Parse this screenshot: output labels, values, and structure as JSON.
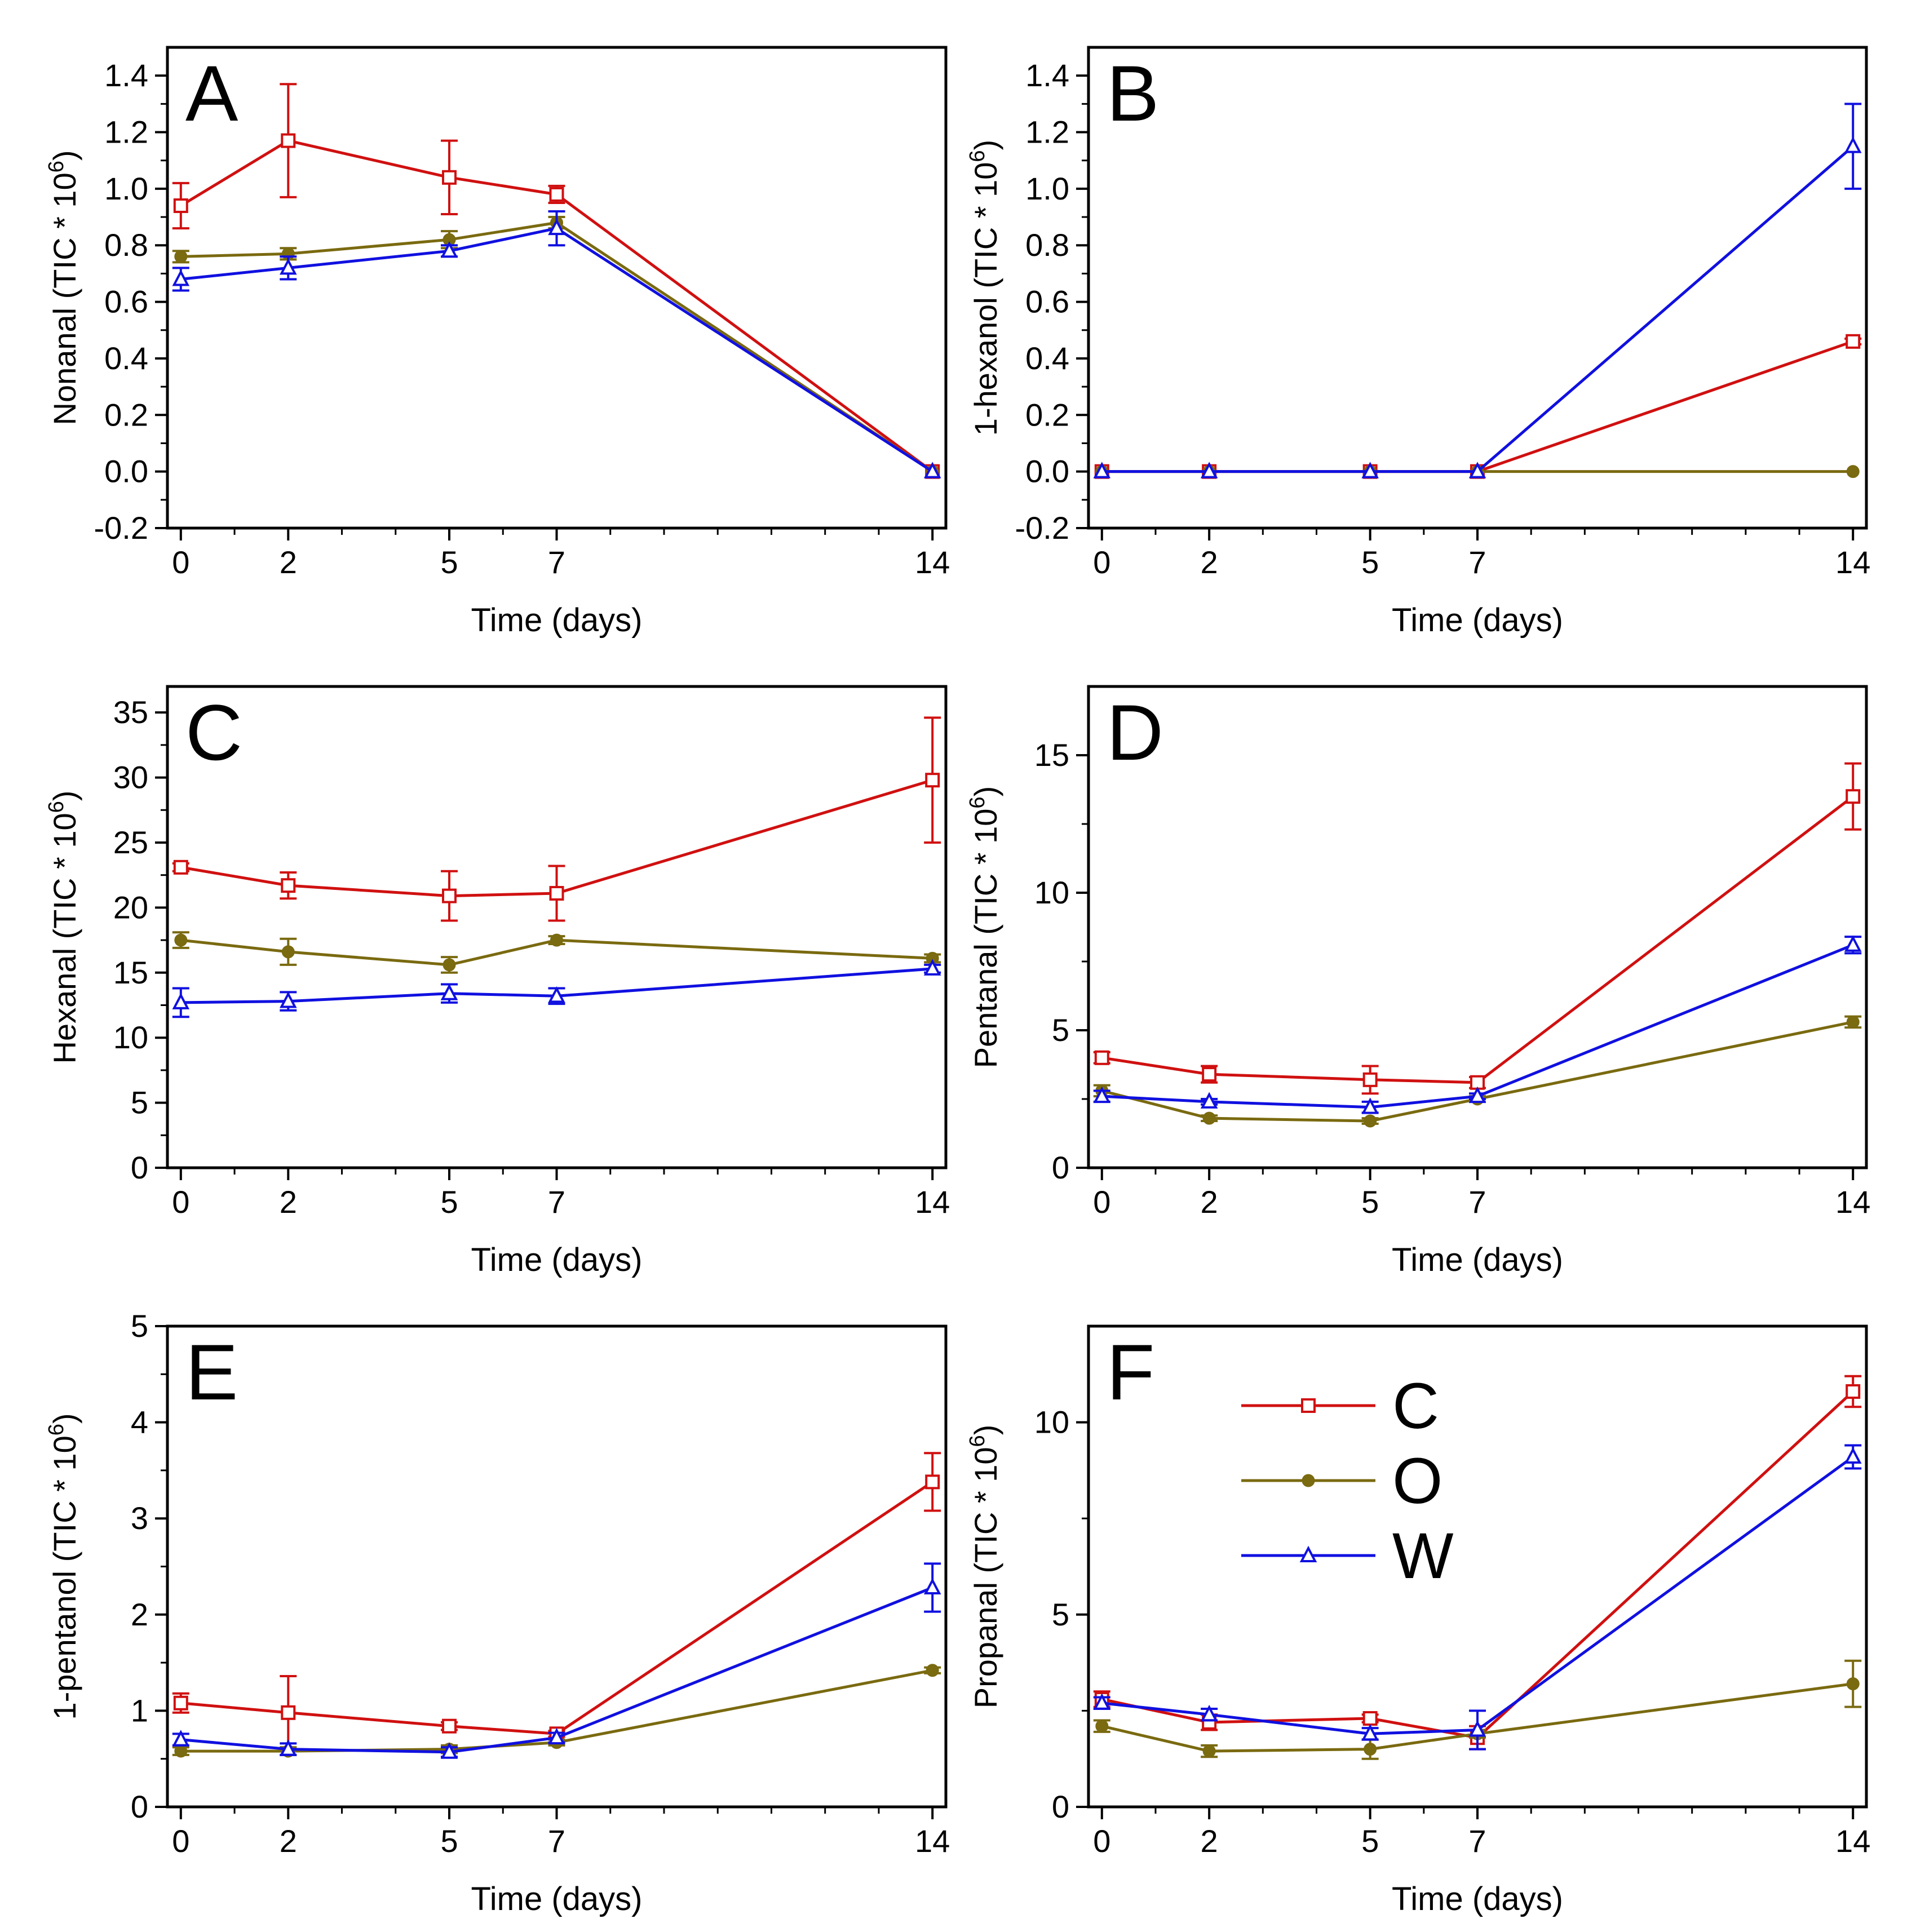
{
  "figure": {
    "x_ticks": [
      0,
      2,
      5,
      7,
      14
    ],
    "colors": {
      "C": "#d01010",
      "O": "#7a6a10",
      "W": "#1010e0"
    },
    "markers": {
      "C": "square-open",
      "O": "circle-filled",
      "W": "triangle-open"
    },
    "legend": [
      {
        "key": "C",
        "label": "C"
      },
      {
        "key": "O",
        "label": "O"
      },
      {
        "key": "W",
        "label": "W"
      }
    ]
  },
  "chart_data": [
    {
      "type": "line",
      "panel_letter": "A",
      "xlabel": "Time (days)",
      "ylabel": "Nonanal (TIC * 10⁶)",
      "ylabel_main": "Nonanal (TIC * 10",
      "ylabel_sup": "6",
      "ylabel_end": ")",
      "ylim": [
        -0.2,
        1.5
      ],
      "y_ticks": [
        "-0.2",
        "0.0",
        "0.2",
        "0.4",
        "0.6",
        "0.8",
        "1.0",
        "1.2",
        "1.4"
      ],
      "x": [
        0,
        2,
        5,
        7,
        14
      ],
      "series": [
        {
          "name": "C",
          "values": [
            0.94,
            1.17,
            1.04,
            0.98,
            0.0
          ],
          "errors": [
            0.08,
            0.2,
            0.13,
            0.03,
            0.0
          ]
        },
        {
          "name": "O",
          "values": [
            0.76,
            0.77,
            0.82,
            0.88,
            0.0
          ],
          "errors": [
            0.02,
            0.02,
            0.03,
            0.02,
            0.0
          ]
        },
        {
          "name": "W",
          "values": [
            0.68,
            0.72,
            0.78,
            0.86,
            0.0
          ],
          "errors": [
            0.04,
            0.04,
            0.02,
            0.06,
            0.0
          ]
        }
      ]
    },
    {
      "type": "line",
      "panel_letter": "B",
      "xlabel": "Time (days)",
      "ylabel": "1-hexanol (TIC * 10⁶)",
      "ylabel_main": "1-hexanol (TIC * 10",
      "ylabel_sup": "6",
      "ylabel_end": ")",
      "ylim": [
        -0.2,
        1.5
      ],
      "y_ticks": [
        "-0.2",
        "0.0",
        "0.2",
        "0.4",
        "0.6",
        "0.8",
        "1.0",
        "1.2",
        "1.4"
      ],
      "x": [
        0,
        2,
        5,
        7,
        14
      ],
      "series": [
        {
          "name": "C",
          "values": [
            0,
            0,
            0,
            0,
            0.46
          ],
          "errors": [
            0,
            0,
            0,
            0,
            0.01
          ]
        },
        {
          "name": "O",
          "values": [
            0,
            0,
            0,
            0,
            0
          ],
          "errors": [
            0,
            0,
            0,
            0,
            0
          ]
        },
        {
          "name": "W",
          "values": [
            0,
            0,
            0,
            0,
            1.15
          ],
          "errors": [
            0,
            0,
            0,
            0,
            0.15
          ]
        }
      ]
    },
    {
      "type": "line",
      "panel_letter": "C",
      "xlabel": "Time (days)",
      "ylabel": "Hexanal (TIC * 10⁶)",
      "ylabel_main": "Hexanal (TIC * 10",
      "ylabel_sup": "6",
      "ylabel_end": ")",
      "ylim": [
        0,
        37
      ],
      "y_ticks": [
        "0",
        "5",
        "10",
        "15",
        "20",
        "25",
        "30",
        "35"
      ],
      "x": [
        0,
        2,
        5,
        7,
        14
      ],
      "series": [
        {
          "name": "C",
          "values": [
            23.1,
            21.7,
            20.9,
            21.1,
            29.8
          ],
          "errors": [
            0.3,
            1.0,
            1.9,
            2.1,
            4.8
          ]
        },
        {
          "name": "O",
          "values": [
            17.5,
            16.6,
            15.6,
            17.5,
            16.1
          ],
          "errors": [
            0.6,
            1.0,
            0.6,
            0.3,
            0.3
          ]
        },
        {
          "name": "W",
          "values": [
            12.7,
            12.8,
            13.4,
            13.2,
            15.3
          ],
          "errors": [
            1.1,
            0.7,
            0.7,
            0.6,
            0.3
          ]
        }
      ]
    },
    {
      "type": "line",
      "panel_letter": "D",
      "xlabel": "Time (days)",
      "ylabel": "Pentanal (TIC * 10⁶)",
      "ylabel_main": "Pentanal (TIC * 10",
      "ylabel_sup": "6",
      "ylabel_end": ")",
      "ylim": [
        0,
        17.5
      ],
      "y_ticks": [
        "0",
        "5",
        "10",
        "15"
      ],
      "x": [
        0,
        2,
        5,
        7,
        14
      ],
      "series": [
        {
          "name": "C",
          "values": [
            4.0,
            3.4,
            3.2,
            3.1,
            13.5
          ],
          "errors": [
            0.2,
            0.3,
            0.5,
            0.2,
            1.2
          ]
        },
        {
          "name": "O",
          "values": [
            2.8,
            1.8,
            1.7,
            2.5,
            5.3
          ],
          "errors": [
            0.2,
            0.1,
            0.1,
            0.1,
            0.2
          ]
        },
        {
          "name": "W",
          "values": [
            2.6,
            2.4,
            2.2,
            2.6,
            8.1
          ],
          "errors": [
            0.2,
            0.1,
            0.2,
            0.1,
            0.3
          ]
        }
      ]
    },
    {
      "type": "line",
      "panel_letter": "E",
      "xlabel": "Time (days)",
      "ylabel": "1-pentanol (TIC * 10⁶)",
      "ylabel_main": "1-pentanol (TIC * 10",
      "ylabel_sup": "6",
      "ylabel_end": ")",
      "ylim": [
        0,
        5
      ],
      "y_ticks": [
        "0",
        "1",
        "2",
        "3",
        "4",
        "5"
      ],
      "x": [
        0,
        2,
        5,
        7,
        14
      ],
      "series": [
        {
          "name": "C",
          "values": [
            1.08,
            0.98,
            0.84,
            0.76,
            3.38
          ],
          "errors": [
            0.1,
            0.38,
            0.04,
            0.03,
            0.3
          ]
        },
        {
          "name": "O",
          "values": [
            0.58,
            0.58,
            0.6,
            0.67,
            1.42
          ],
          "errors": [
            0.04,
            0.04,
            0.04,
            0.03,
            0.03
          ]
        },
        {
          "name": "W",
          "values": [
            0.7,
            0.6,
            0.57,
            0.72,
            2.28
          ],
          "errors": [
            0.06,
            0.06,
            0.05,
            0.05,
            0.25
          ]
        }
      ]
    },
    {
      "type": "line",
      "panel_letter": "F",
      "xlabel": "Time (days)",
      "ylabel": "Propanal (TIC * 10⁶)",
      "ylabel_main": "Propanal (TIC * 10",
      "ylabel_sup": "6",
      "ylabel_end": ")",
      "ylim": [
        0,
        12.5
      ],
      "y_ticks": [
        "0",
        "5",
        "10"
      ],
      "x": [
        0,
        2,
        5,
        7,
        14
      ],
      "series": [
        {
          "name": "C",
          "values": [
            2.8,
            2.2,
            2.3,
            1.8,
            10.8
          ],
          "errors": [
            0.2,
            0.2,
            0.1,
            0.3,
            0.4
          ]
        },
        {
          "name": "O",
          "values": [
            2.1,
            1.45,
            1.5,
            1.9,
            3.2
          ],
          "errors": [
            0.15,
            0.15,
            0.25,
            0.1,
            0.6
          ]
        },
        {
          "name": "W",
          "values": [
            2.7,
            2.4,
            1.9,
            2.0,
            9.1
          ],
          "errors": [
            0.15,
            0.15,
            0.15,
            0.5,
            0.3
          ]
        }
      ],
      "legend_position": "top-left"
    }
  ]
}
